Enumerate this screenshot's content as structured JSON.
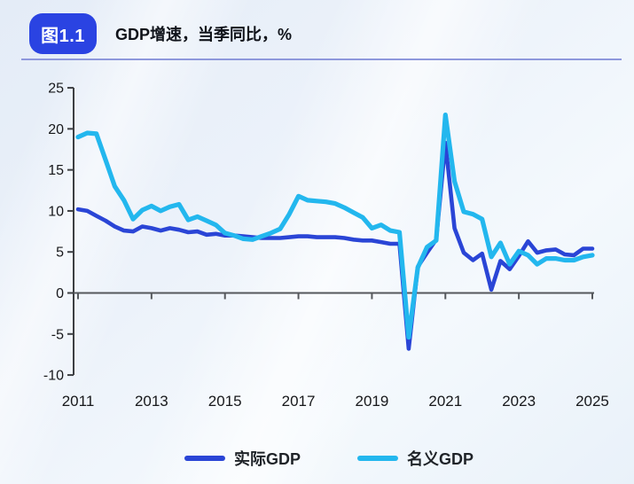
{
  "header": {
    "figure_badge": "图1.1",
    "title": "GDP增速，当季同比，%"
  },
  "chart_data": {
    "type": "line",
    "title": "GDP增速，当季同比，%",
    "x_unit": "quarter",
    "x_range": [
      "2011Q1",
      "2025Q1"
    ],
    "x_tick_labels": [
      "2011",
      "2013",
      "2015",
      "2017",
      "2019",
      "2021",
      "2023",
      "2025"
    ],
    "y_ticks": [
      25,
      20,
      15,
      10,
      5,
      0,
      -5,
      -10
    ],
    "ylim": [
      -10,
      25
    ],
    "grid": "off",
    "legend_position": "bottom",
    "series": [
      {
        "name": "实际GDP",
        "color": "#2a45d6",
        "values": [
          10.2,
          10.0,
          9.4,
          8.8,
          8.1,
          7.6,
          7.5,
          8.1,
          7.9,
          7.6,
          7.9,
          7.7,
          7.4,
          7.5,
          7.1,
          7.2,
          7.0,
          7.0,
          6.9,
          6.8,
          6.7,
          6.7,
          6.7,
          6.8,
          6.9,
          6.9,
          6.8,
          6.8,
          6.8,
          6.7,
          6.5,
          6.4,
          6.4,
          6.2,
          6.0,
          6.0,
          -6.8,
          3.2,
          4.9,
          6.5,
          18.3,
          7.9,
          4.9,
          4.0,
          4.8,
          0.4,
          3.9,
          2.9,
          4.5,
          6.3,
          4.9,
          5.2,
          5.3,
          4.7,
          4.6,
          5.4,
          5.4
        ]
      },
      {
        "name": "名义GDP",
        "color": "#23b7ee",
        "values": [
          19.0,
          19.5,
          19.4,
          16.2,
          13.0,
          11.3,
          9.0,
          10.1,
          10.6,
          10.0,
          10.5,
          10.8,
          8.9,
          9.3,
          8.8,
          8.3,
          7.3,
          7.0,
          6.6,
          6.5,
          6.9,
          7.3,
          7.8,
          9.6,
          11.8,
          11.3,
          11.2,
          11.1,
          10.9,
          10.4,
          9.8,
          9.2,
          7.9,
          8.3,
          7.6,
          7.4,
          -5.4,
          3.1,
          5.6,
          6.4,
          21.7,
          13.6,
          9.9,
          9.6,
          9.0,
          4.4,
          6.1,
          3.5,
          5.1,
          4.6,
          3.5,
          4.2,
          4.2,
          4.0,
          4.0,
          4.4,
          4.6
        ]
      }
    ]
  }
}
